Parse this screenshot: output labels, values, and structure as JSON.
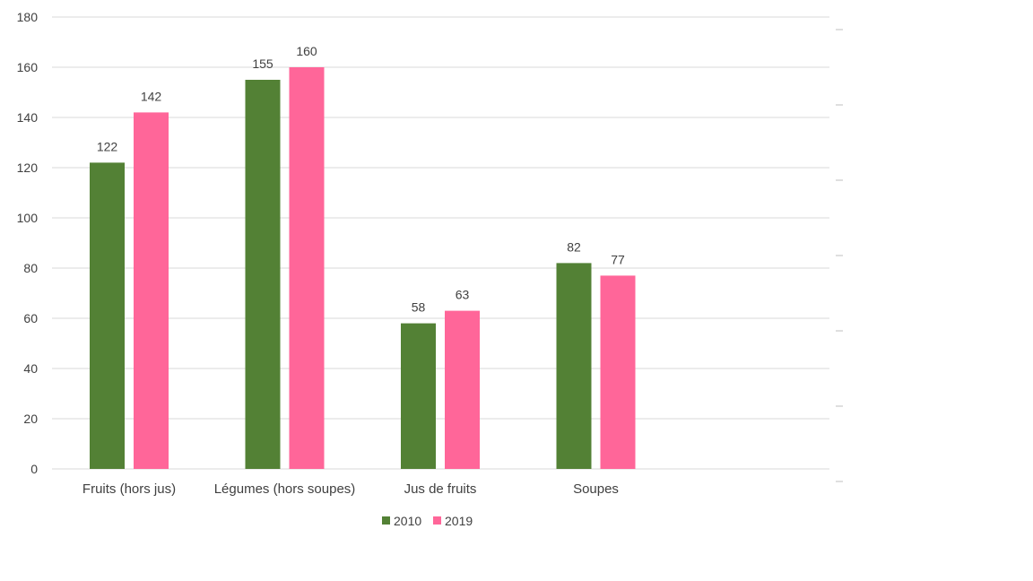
{
  "chart_data": {
    "type": "bar",
    "categories": [
      "Fruits (hors jus)",
      "Légumes (hors soupes)",
      "Jus de fruits",
      "Soupes"
    ],
    "series": [
      {
        "name": "2010",
        "values": [
          122,
          155,
          58,
          82
        ],
        "color": "#538135"
      },
      {
        "name": "2019",
        "values": [
          142,
          160,
          63,
          77
        ],
        "color": "#ff6699"
      }
    ],
    "yticks": [
      "0",
      "20",
      "40",
      "60",
      "80",
      "100",
      "120",
      "140",
      "160",
      "180"
    ],
    "ylim": [
      0,
      180
    ],
    "grid": true,
    "legend": "bottom",
    "title": "",
    "xlabel": "",
    "ylabel": ""
  }
}
